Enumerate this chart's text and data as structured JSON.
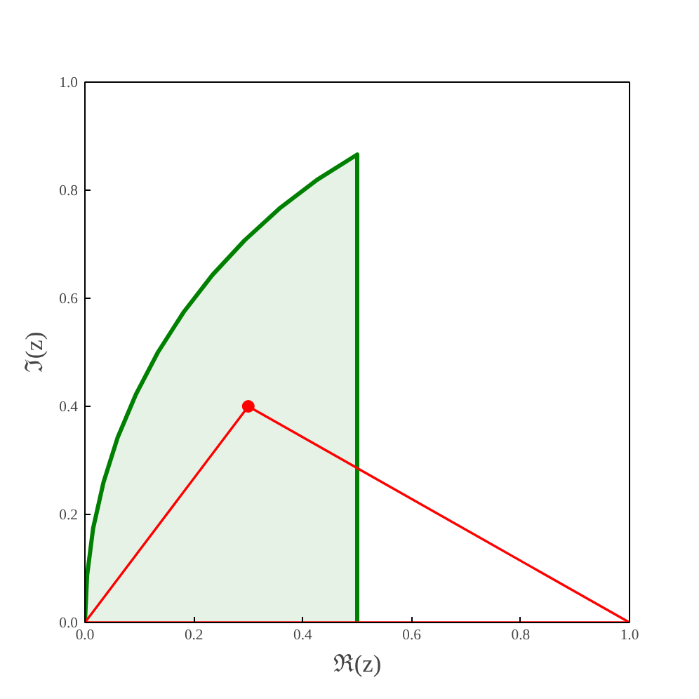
{
  "chart_data": {
    "type": "line",
    "xlabel": "ℜ(z)",
    "ylabel": "ℑ(z)",
    "xlim": [
      0,
      1
    ],
    "ylim": [
      0,
      1
    ],
    "xticks": [
      {
        "value": 0,
        "label": "0.0"
      },
      {
        "value": 0.2,
        "label": "0.2"
      },
      {
        "value": 0.4,
        "label": "0.4"
      },
      {
        "value": 0.6,
        "label": "0.6"
      },
      {
        "value": 0.8,
        "label": "0.8"
      },
      {
        "value": 1,
        "label": "1.0"
      }
    ],
    "yticks": [
      {
        "value": 0,
        "label": "0.0"
      },
      {
        "value": 0.2,
        "label": "0.2"
      },
      {
        "value": 0.4,
        "label": "0.4"
      },
      {
        "value": 0.6,
        "label": "0.6"
      },
      {
        "value": 0.8,
        "label": "0.8"
      },
      {
        "value": 1,
        "label": "1.0"
      }
    ],
    "grid": false,
    "series": [
      {
        "type": "area",
        "color": "#008000",
        "x": [
          0,
          0.004,
          0.015,
          0.034,
          0.06,
          0.094,
          0.134,
          0.181,
          0.234,
          0.293,
          0.357,
          0.426,
          0.5,
          0.5
        ],
        "values": [
          0,
          0.087,
          0.174,
          0.259,
          0.342,
          0.423,
          0.5,
          0.574,
          0.643,
          0.707,
          0.766,
          0.819,
          0.866,
          0
        ]
      },
      {
        "color": "#ff0000",
        "marker": "none",
        "x": [
          0,
          0.3,
          1
        ],
        "values": [
          0,
          0.4,
          0
        ]
      },
      {
        "color": "#ff0000",
        "marker": "none",
        "x": [
          0,
          1
        ],
        "values": [
          0,
          0
        ]
      },
      {
        "type": "scatter",
        "color": "#ff0000",
        "marker": "circle",
        "x": [
          0.3
        ],
        "values": [
          0.4
        ]
      }
    ]
  }
}
